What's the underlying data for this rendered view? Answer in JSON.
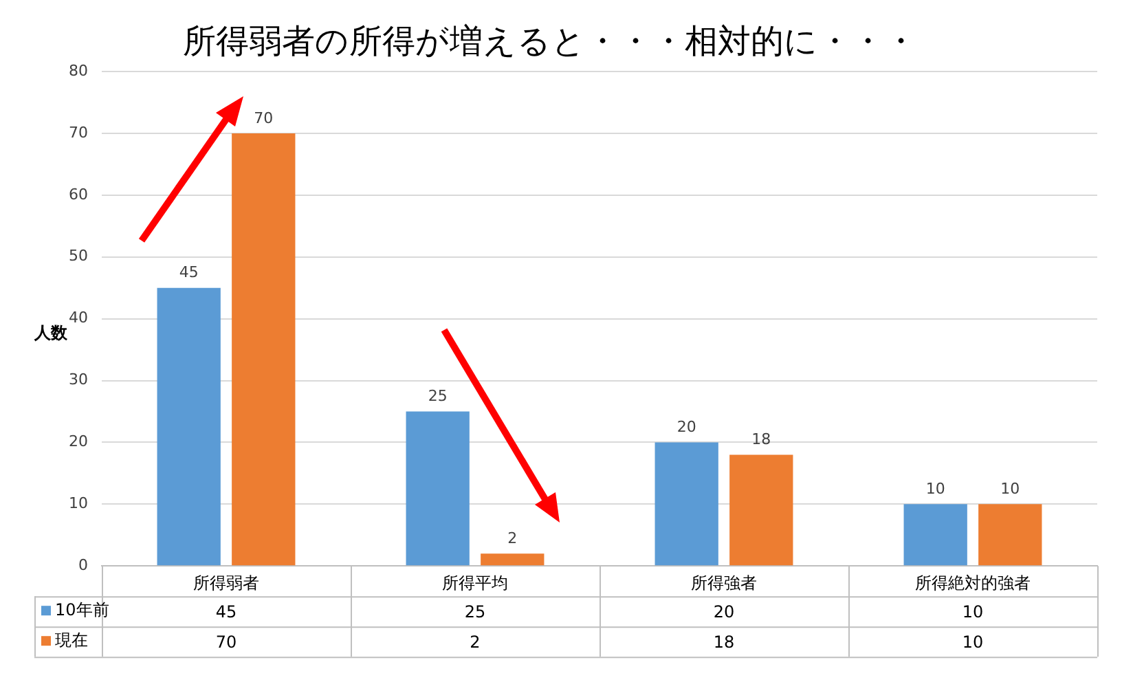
{
  "chart_data": {
    "type": "bar",
    "title": "所得弱者の所得が増えると・・・相対的に・・・",
    "ylabel": "人数",
    "categories": [
      "所得弱者",
      "所得平均",
      "所得強者",
      "所得絶対的強者"
    ],
    "series": [
      {
        "name": "10年前",
        "color": "#5b9bd5",
        "values": [
          45,
          25,
          20,
          10
        ],
        "value_labels": [
          "45",
          "25",
          "20",
          "10"
        ]
      },
      {
        "name": "現在",
        "color": "#ed7d31",
        "values": [
          70,
          2,
          18,
          10
        ],
        "value_labels": [
          "70",
          "2",
          "18",
          "10"
        ]
      }
    ],
    "annotations": [
      "45",
      "25",
      "20",
      "10",
      "70",
      "2",
      "18",
      "10"
    ],
    "ylim": [
      0,
      80
    ],
    "yticks": [
      0,
      10,
      20,
      30,
      40,
      50,
      60,
      70,
      80
    ],
    "grid": "y",
    "data_labels": true,
    "legend": "bottom"
  }
}
